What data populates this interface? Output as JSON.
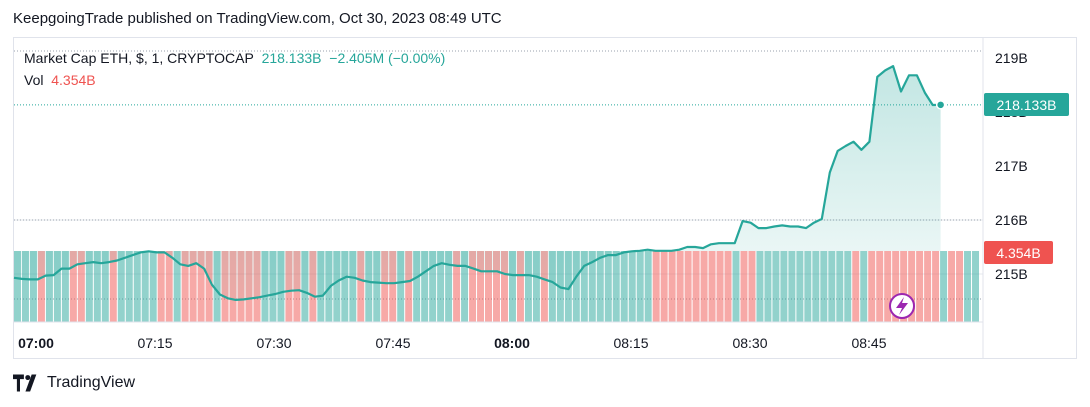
{
  "header": {
    "text": "KeepgoingTrade published on TradingView.com, Oct 30, 2023 08:49 UTC"
  },
  "legend": {
    "symbol": "Market Cap ETH, $, 1, CRYPTOCAP",
    "price": "218.133B",
    "change": "−2.405M (−0.00%)",
    "vol_label": "Vol",
    "vol_value": "4.354B"
  },
  "price_badge": "218.133B",
  "vol_badge": "4.354B",
  "footer": {
    "brand": "TradingView"
  },
  "colors": {
    "line": "#26a69a",
    "up": "#26a69a",
    "down": "#ef5350",
    "fill": "#26a69a"
  },
  "chart_data": {
    "type": "area",
    "y_ticks": [
      "219B",
      "218B",
      "217B",
      "216B",
      "215B"
    ],
    "x_ticks": [
      {
        "label": "07:00",
        "bold": true
      },
      {
        "label": "07:15",
        "bold": false
      },
      {
        "label": "07:30",
        "bold": false
      },
      {
        "label": "07:45",
        "bold": false
      },
      {
        "label": "08:00",
        "bold": true
      },
      {
        "label": "08:15",
        "bold": false
      },
      {
        "label": "08:30",
        "bold": false
      },
      {
        "label": "08:45",
        "bold": false
      }
    ],
    "ylim": [
      214.45,
      219.2
    ],
    "xlim_minutes": [
      0,
      118.5
    ],
    "price_series": [
      [
        0,
        214.93
      ],
      [
        1,
        214.91
      ],
      [
        2,
        214.9
      ],
      [
        3,
        214.9
      ],
      [
        4,
        214.97
      ],
      [
        5,
        214.98
      ],
      [
        6,
        215.1
      ],
      [
        7,
        215.1
      ],
      [
        8,
        215.18
      ],
      [
        9,
        215.2
      ],
      [
        10,
        215.22
      ],
      [
        11,
        215.2
      ],
      [
        12,
        215.22
      ],
      [
        13,
        215.25
      ],
      [
        14,
        215.3
      ],
      [
        15,
        215.35
      ],
      [
        16,
        215.4
      ],
      [
        17,
        215.42
      ],
      [
        18,
        215.4
      ],
      [
        19,
        215.4
      ],
      [
        20,
        215.3
      ],
      [
        21,
        215.18
      ],
      [
        22,
        215.15
      ],
      [
        23,
        215.2
      ],
      [
        24,
        215.1
      ],
      [
        25,
        214.8
      ],
      [
        26,
        214.62
      ],
      [
        27,
        214.55
      ],
      [
        28,
        214.52
      ],
      [
        29,
        214.53
      ],
      [
        30,
        214.55
      ],
      [
        31,
        214.57
      ],
      [
        32,
        214.6
      ],
      [
        33,
        214.63
      ],
      [
        34,
        214.67
      ],
      [
        35,
        214.69
      ],
      [
        36,
        214.7
      ],
      [
        37,
        214.65
      ],
      [
        38,
        214.58
      ],
      [
        39,
        214.6
      ],
      [
        40,
        214.78
      ],
      [
        41,
        214.88
      ],
      [
        42,
        214.95
      ],
      [
        43,
        214.93
      ],
      [
        44,
        214.88
      ],
      [
        45,
        214.85
      ],
      [
        46,
        214.84
      ],
      [
        47,
        214.83
      ],
      [
        48,
        214.83
      ],
      [
        49,
        214.85
      ],
      [
        50,
        214.87
      ],
      [
        51,
        214.95
      ],
      [
        52,
        215.05
      ],
      [
        53,
        215.15
      ],
      [
        54,
        215.2
      ],
      [
        55,
        215.17
      ],
      [
        56,
        215.15
      ],
      [
        57,
        215.15
      ],
      [
        58,
        215.1
      ],
      [
        59,
        215.05
      ],
      [
        60,
        215.05
      ],
      [
        61,
        215.05
      ],
      [
        62,
        215.0
      ],
      [
        63,
        214.98
      ],
      [
        64,
        214.98
      ],
      [
        65,
        214.98
      ],
      [
        66,
        214.95
      ],
      [
        67,
        214.9
      ],
      [
        68,
        214.85
      ],
      [
        69,
        214.75
      ],
      [
        70,
        214.72
      ],
      [
        71,
        214.95
      ],
      [
        72,
        215.15
      ],
      [
        73,
        215.22
      ],
      [
        74,
        215.3
      ],
      [
        75,
        215.35
      ],
      [
        76,
        215.35
      ],
      [
        77,
        215.4
      ],
      [
        78,
        215.42
      ],
      [
        79,
        215.43
      ],
      [
        80,
        215.45
      ],
      [
        81,
        215.43
      ],
      [
        82,
        215.43
      ],
      [
        83,
        215.43
      ],
      [
        84,
        215.45
      ],
      [
        85,
        215.5
      ],
      [
        86,
        215.5
      ],
      [
        87,
        215.48
      ],
      [
        88,
        215.55
      ],
      [
        89,
        215.57
      ],
      [
        90,
        215.57
      ],
      [
        91,
        215.57
      ],
      [
        92,
        215.98
      ],
      [
        93,
        215.95
      ],
      [
        94,
        215.85
      ],
      [
        95,
        215.85
      ],
      [
        96,
        215.88
      ],
      [
        97,
        215.9
      ],
      [
        98,
        215.88
      ],
      [
        99,
        215.88
      ],
      [
        100,
        215.85
      ],
      [
        101,
        215.95
      ],
      [
        102,
        216.02
      ],
      [
        103,
        216.88
      ],
      [
        104,
        217.28
      ],
      [
        105,
        217.37
      ],
      [
        106,
        217.45
      ],
      [
        107,
        217.3
      ],
      [
        108,
        217.45
      ],
      [
        109,
        218.65
      ],
      [
        110,
        218.77
      ],
      [
        111,
        218.85
      ],
      [
        112,
        218.38
      ],
      [
        113,
        218.68
      ],
      [
        114,
        218.68
      ],
      [
        115,
        218.36
      ],
      [
        116,
        218.13
      ],
      [
        117,
        218.133
      ]
    ],
    "volume_colors": "gggrgggrrgggrgggggrrgrrrrgrrrrrgggrrgrgggggrggrrgrgggggrgrrrrrgrggrgggggggggggggrrrrrrrrrrgrrggggggggggggrgrrrrrrrrrgrrgg"
  }
}
